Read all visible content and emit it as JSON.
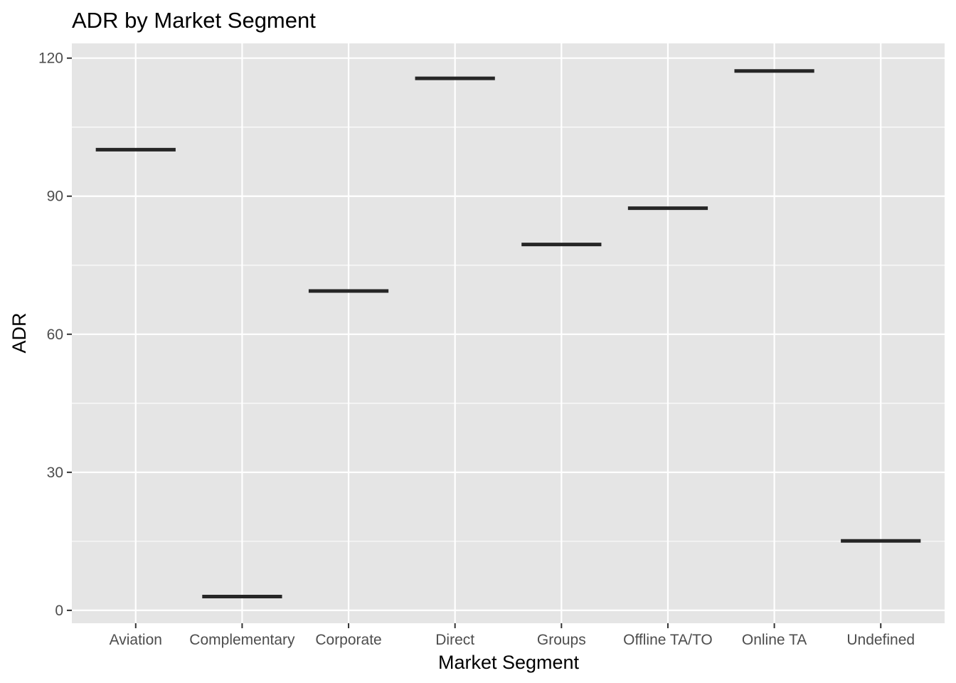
{
  "chart_data": {
    "type": "bar",
    "title": "ADR by Market Segment",
    "xlabel": "Market Segment",
    "ylabel": "ADR",
    "categories": [
      "Aviation",
      "Complementary",
      "Corporate",
      "Direct",
      "Groups",
      "Offline TA/TO",
      "Online TA",
      "Undefined"
    ],
    "values": [
      100.1,
      3.0,
      69.4,
      115.6,
      79.5,
      87.4,
      117.2,
      15.1
    ],
    "y_ticks": [
      0,
      30,
      60,
      90,
      120
    ],
    "y_tick_labels": [
      "0",
      "30",
      "60",
      "90",
      "120"
    ],
    "ylim": [
      -2.8,
      123.2
    ],
    "grid": true,
    "legend": "none",
    "colors": {
      "panel_background": "#e5e5e5",
      "grid": "#ffffff",
      "mark": "#262626",
      "tick_text": "#4d4d4d"
    }
  }
}
